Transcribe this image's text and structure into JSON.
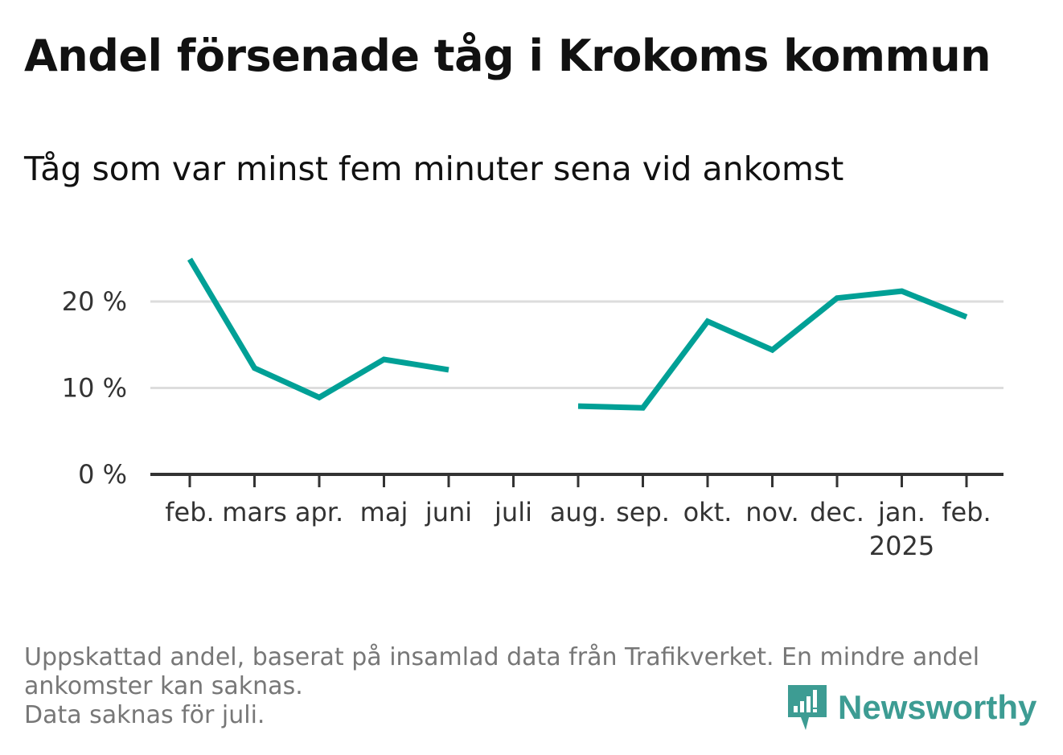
{
  "title": "Andel försenade tåg i Krokoms kommun",
  "subtitle": "Tåg som var minst fem minuter sena vid ankomst",
  "footnote": {
    "line1": "Uppskattad andel, baserat på insamlad data från Trafikverket. En mindre andel",
    "line2": "ankomster kan saknas.",
    "line3": "Data saknas för juli."
  },
  "brand": {
    "name": "Newsworthy",
    "icon": "newsworthy-logo-icon",
    "color": "#3d9c93"
  },
  "chart_data": {
    "type": "line",
    "title": "Andel försenade tåg i Krokoms kommun",
    "subtitle": "Tåg som var minst fem minuter sena vid ankomst",
    "categories": [
      "feb.",
      "mars",
      "apr.",
      "maj",
      "juni",
      "juli",
      "aug.",
      "sep.",
      "okt.",
      "nov.",
      "dec.",
      "jan.",
      "feb."
    ],
    "year_label": {
      "category_index": 11,
      "text": "2025"
    },
    "series": [
      {
        "color": "#00a096",
        "values": [
          24.9,
          12.3,
          8.9,
          13.3,
          12.1,
          null,
          7.9,
          7.7,
          17.7,
          14.4,
          20.4,
          21.2,
          18.2
        ]
      }
    ],
    "y_ticks": [
      0,
      10,
      20
    ],
    "y_tick_labels": [
      "0 %",
      "10 %",
      "20 %"
    ],
    "ylim": [
      0,
      26
    ],
    "grid": true,
    "legend": "none",
    "colors": {
      "line": "#00a096",
      "grid": "#dddddd",
      "axis": "#333333",
      "tick_text": "#333333"
    }
  }
}
